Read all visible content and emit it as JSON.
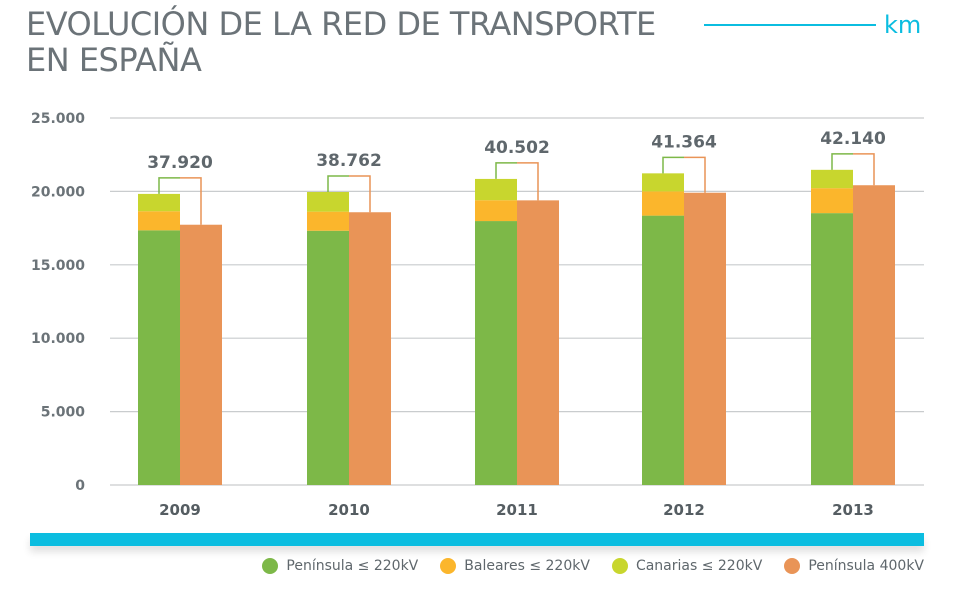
{
  "title": {
    "line1": "EVOLUCIÓN DE LA RED DE TRANSPORTE",
    "line2": "EN ESPAÑA"
  },
  "unit": "km",
  "colors": {
    "peninsula_220": "#7db848",
    "baleares_220": "#fbb62c",
    "canarias_220": "#c8d62e",
    "peninsula_400": "#e99457",
    "accent": "#0bbde0",
    "title": "#6b7378",
    "grid": "#c9ccce",
    "bracket_green": "#7db848",
    "bracket_orange": "#e99457"
  },
  "chart_data": {
    "type": "bar",
    "categories": [
      "2009",
      "2010",
      "2011",
      "2012",
      "2013"
    ],
    "y_tick_labels": [
      "0",
      "5.000",
      "10.000",
      "15.000",
      "20.000",
      "25.000"
    ],
    "y_tick_values": [
      0,
      5000,
      10000,
      15000,
      20000,
      25000
    ],
    "ylim": [
      0,
      25000
    ],
    "grid": true,
    "legend_position": "bottom-right",
    "stacked_series": [
      {
        "name": "Península ≤ 220kV",
        "color_key": "peninsula_220",
        "values": [
          17350,
          17320,
          17980,
          18350,
          18520
        ]
      },
      {
        "name": "Baleares ≤ 220kV",
        "color_key": "baleares_220",
        "values": [
          1300,
          1300,
          1420,
          1650,
          1700
        ]
      },
      {
        "name": "Canarias ≤ 220kV",
        "color_key": "canarias_220",
        "values": [
          1180,
          1340,
          1450,
          1230,
          1250
        ]
      }
    ],
    "single_series": {
      "name": "Península 400kV",
      "color_key": "peninsula_400",
      "values": [
        17730,
        18580,
        19390,
        19910,
        20420
      ]
    },
    "totals": [
      37920,
      38762,
      40502,
      41364,
      42140
    ],
    "total_labels": [
      "37.920",
      "38.762",
      "40.502",
      "41.364",
      "42.140"
    ]
  },
  "legend": [
    {
      "label": "Península ≤ 220kV",
      "color_key": "peninsula_220"
    },
    {
      "label": "Baleares ≤ 220kV",
      "color_key": "baleares_220"
    },
    {
      "label": "Canarias ≤ 220kV",
      "color_key": "canarias_220"
    },
    {
      "label": "Península 400kV",
      "color_key": "peninsula_400"
    }
  ]
}
